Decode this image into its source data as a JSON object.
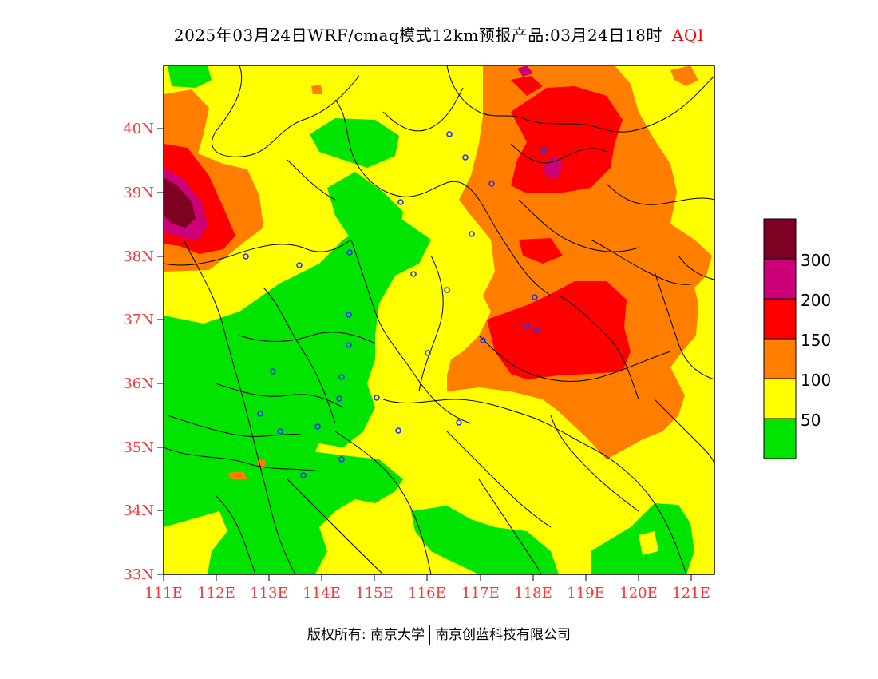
{
  "title": {
    "text": "2025年03月24日WRF/cmaq模式12km预报产品:03月24日18时",
    "variable": "AQI"
  },
  "map": {
    "lon_range": [
      111,
      121.4
    ],
    "lat_range": [
      33,
      41
    ],
    "x_ticks": [
      "111E",
      "112E",
      "113E",
      "114E",
      "115E",
      "116E",
      "117E",
      "118E",
      "119E",
      "120E",
      "121E"
    ],
    "y_ticks": [
      "33N",
      "34N",
      "35N",
      "36N",
      "37N",
      "38N",
      "39N",
      "40N"
    ],
    "aqi_classes": [
      {
        "range": "0-50",
        "color": "#00e400"
      },
      {
        "range": "50-100",
        "color": "#ffff00"
      },
      {
        "range": "100-150",
        "color": "#ff7e00"
      },
      {
        "range": "150-200",
        "color": "#ff0000"
      },
      {
        "range": "200-300",
        "color": "#cc0077"
      },
      {
        "range": ">300",
        "color": "#7e0023"
      }
    ],
    "station_marker_color": "#2233ff"
  },
  "legend": {
    "labels": [
      "300",
      "200",
      "150",
      "100",
      "50"
    ]
  },
  "footer": {
    "left": "版权所有: 南京大学",
    "right": "南京创蓝科技有限公司"
  }
}
